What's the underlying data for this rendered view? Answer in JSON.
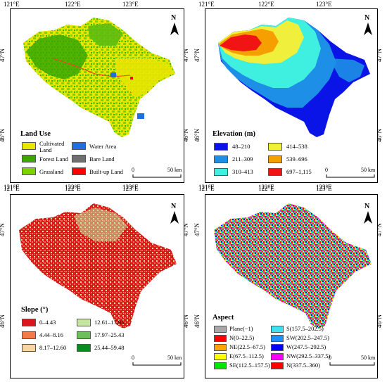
{
  "axes": {
    "top": [
      "121°E",
      "122°E",
      "123°E"
    ],
    "left": [
      "47°N",
      "46°N"
    ]
  },
  "panels": [
    {
      "id": "landuse",
      "title": "Land Use",
      "scale": [
        "0",
        "50 km"
      ],
      "north": "N",
      "legend": [
        {
          "label": "Cultivated Land",
          "color": "#e6e600"
        },
        {
          "label": "Forest Land",
          "color": "#38a800"
        },
        {
          "label": "Grassland",
          "color": "#7bd400"
        },
        {
          "label": "Water Area",
          "color": "#1f6fe0"
        },
        {
          "label": "Bare Land",
          "color": "#6e6e6e"
        },
        {
          "label": "Built-up Land",
          "color": "#ff0000"
        }
      ]
    },
    {
      "id": "elevation",
      "title": "Elevation (m)",
      "scale": [
        "0",
        "50 km"
      ],
      "north": "N",
      "legend": [
        {
          "label": "48–210",
          "color": "#0a14e6"
        },
        {
          "label": "211–309",
          "color": "#1e8fe6"
        },
        {
          "label": "310–413",
          "color": "#3ff0e0"
        },
        {
          "label": "414–538",
          "color": "#f0f03c"
        },
        {
          "label": "539–696",
          "color": "#f5a000"
        },
        {
          "label": "697–1,115",
          "color": "#f01414"
        }
      ]
    },
    {
      "id": "slope",
      "title": "Slope (°)",
      "scale": [
        "0",
        "50 km"
      ],
      "north": "N",
      "legend": [
        {
          "label": "0–4.43",
          "color": "#d7191c"
        },
        {
          "label": "4.44–8.16",
          "color": "#f47a4a"
        },
        {
          "label": "8.17–12.60",
          "color": "#fdd49e"
        },
        {
          "label": "12.61–17.96",
          "color": "#c5e6a0"
        },
        {
          "label": "17.97–25.43",
          "color": "#6cbf5a"
        },
        {
          "label": "25.44–59.48",
          "color": "#0b8a1e"
        }
      ]
    },
    {
      "id": "aspect",
      "title": "Aspect",
      "scale": [
        "0",
        "50 km"
      ],
      "north": "N",
      "legend": [
        {
          "label": "Plane(−1)",
          "color": "#a8a8a8"
        },
        {
          "label": "N(0–22.5)",
          "color": "#ff0000"
        },
        {
          "label": "NE(22.5–67.5)",
          "color": "#ffa500"
        },
        {
          "label": "E(67.5–112.5)",
          "color": "#ffff00"
        },
        {
          "label": "SE(112.5–157.5)",
          "color": "#00e600"
        },
        {
          "label": "S(157.5–202.5)",
          "color": "#3fe0f0"
        },
        {
          "label": "SW(202.5–247.5)",
          "color": "#1e90ff"
        },
        {
          "label": "W(247.5–292.5)",
          "color": "#0000ff"
        },
        {
          "label": "NW(292.5–337.5)",
          "color": "#ff00ff"
        },
        {
          "label": "N(337.5–360)",
          "color": "#ff0000"
        }
      ]
    }
  ]
}
